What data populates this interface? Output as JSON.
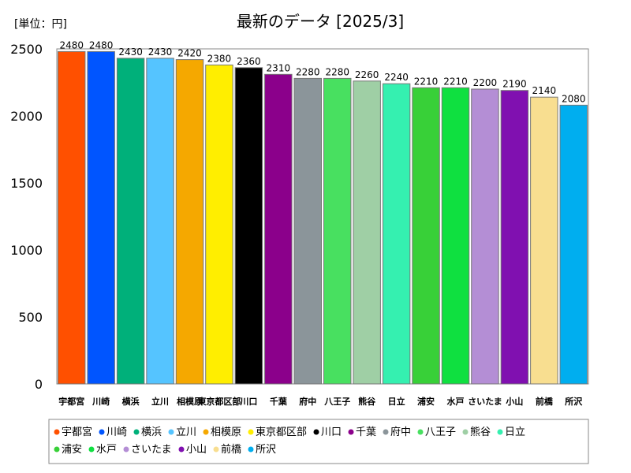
{
  "chart_data": {
    "type": "bar",
    "title": "最新のデータ [2025/3]",
    "unit_label": "[単位：円]",
    "ylim": [
      0,
      2500
    ],
    "yticks": [
      0,
      500,
      1000,
      1500,
      2000,
      2500
    ],
    "grid": false,
    "legend_position": "bottom",
    "categories": [
      "宇都宮",
      "川崎",
      "横浜",
      "立川",
      "相模原",
      "東京都区部",
      "川口",
      "千葉",
      "府中",
      "八王子",
      "熊谷",
      "日立",
      "浦安",
      "水戸",
      "さいたま",
      "小山",
      "前橋",
      "所沢"
    ],
    "values": [
      2480,
      2480,
      2430,
      2430,
      2420,
      2380,
      2360,
      2310,
      2280,
      2280,
      2260,
      2240,
      2210,
      2210,
      2200,
      2190,
      2140,
      2080
    ],
    "colors": [
      "#FF5000",
      "#0055FF",
      "#00B07A",
      "#55C4FF",
      "#F5A800",
      "#FFEE00",
      "#000000",
      "#8B008B",
      "#8B959A",
      "#48E060",
      "#9FCFA5",
      "#35F0B0",
      "#38D038",
      "#0FE040",
      "#B48ED5",
      "#8010B0",
      "#F8DE90",
      "#00AEEF"
    ]
  }
}
